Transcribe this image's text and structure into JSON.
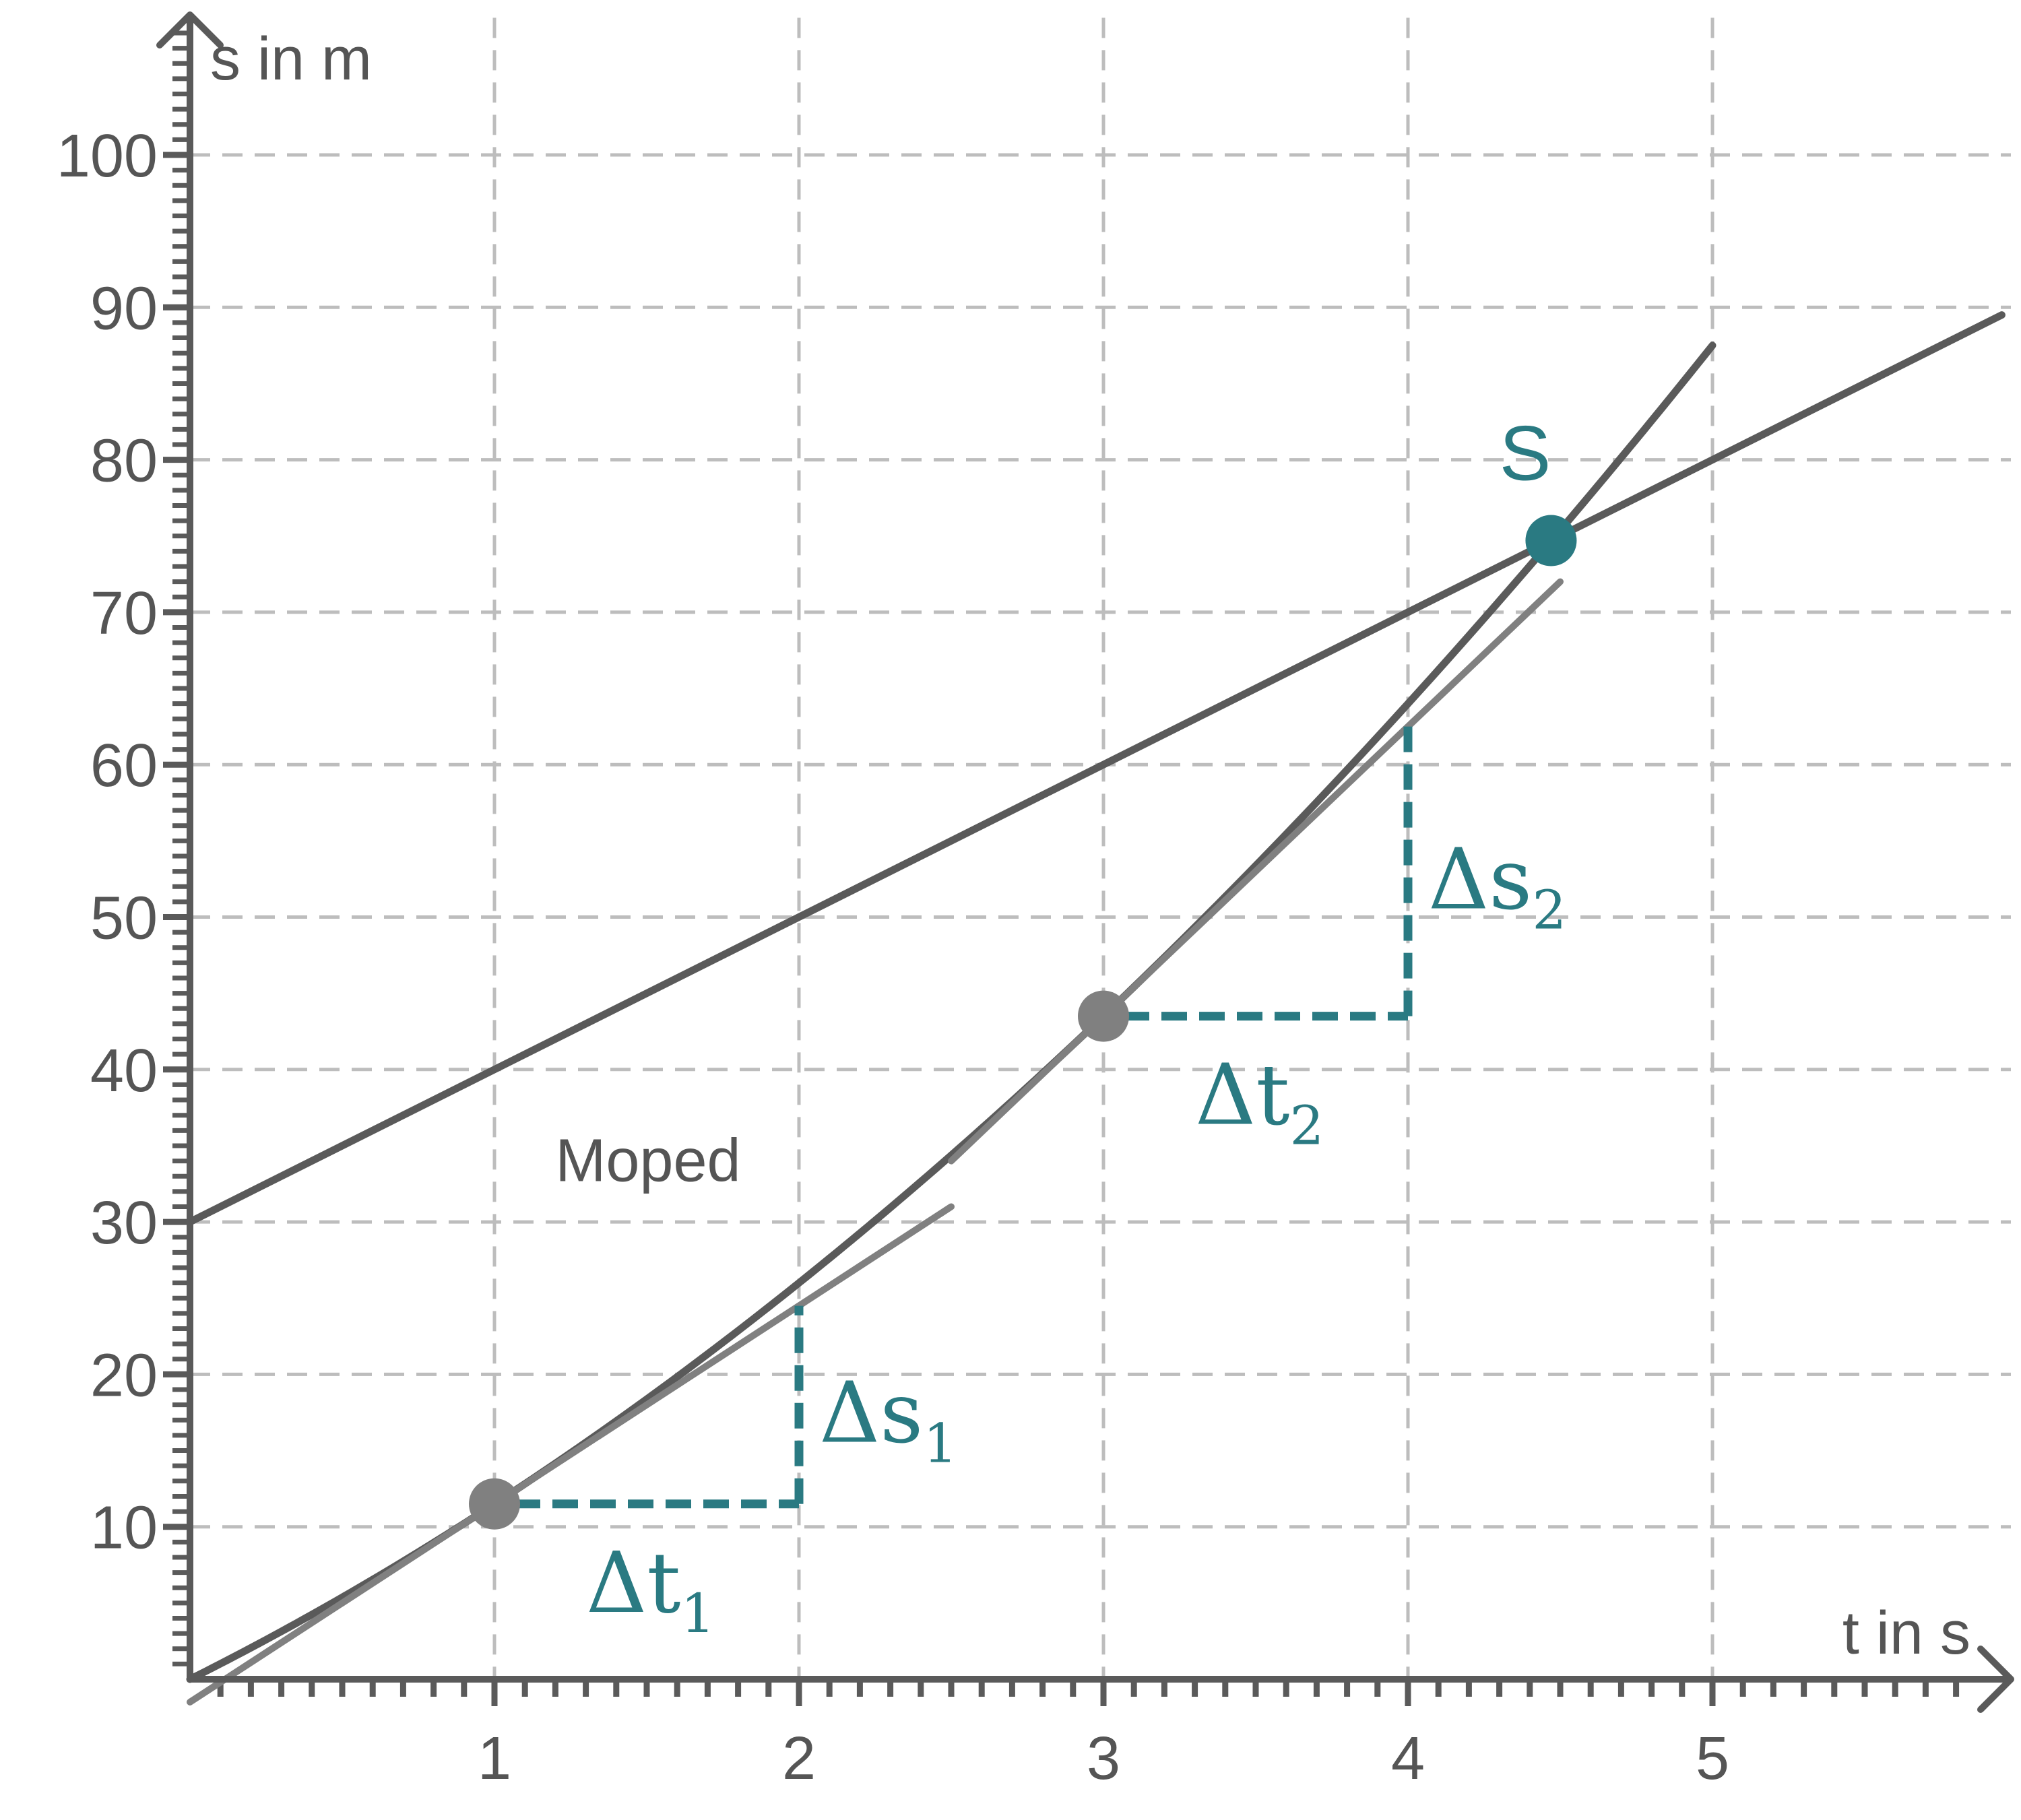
{
  "chart_data": {
    "type": "line",
    "xlabel": "t in s",
    "ylabel": "s in m",
    "xlim": [
      0,
      5.95
    ],
    "ylim": [
      0,
      109
    ],
    "x_ticks": [
      1,
      2,
      3,
      4,
      5
    ],
    "y_ticks": [
      10,
      20,
      30,
      40,
      50,
      60,
      70,
      80,
      90,
      100
    ],
    "grid": true,
    "series": [
      {
        "name": "",
        "kind": "curve",
        "formula": "s = 10*t + 1.5*t^2",
        "x_range": [
          0,
          5
        ],
        "color": "#5a5a5a"
      },
      {
        "name": "Moped",
        "kind": "line",
        "formula": "s = 30 + 10*t",
        "x_range": [
          0,
          5.95
        ],
        "color": "#5a5a5a"
      },
      {
        "name": "",
        "kind": "tangent",
        "slope": 13,
        "through": [
          1,
          11.5
        ],
        "x_range": [
          0,
          2.5
        ],
        "color": "#808080"
      },
      {
        "name": "",
        "kind": "tangent",
        "slope": 19,
        "through": [
          3,
          43.5
        ],
        "x_range": [
          2.5,
          4.5
        ],
        "color": "#808080"
      }
    ],
    "points": [
      {
        "name": "",
        "x": 1,
        "y": 11.5,
        "color": "#808080"
      },
      {
        "name": "",
        "x": 3,
        "y": 43.5,
        "color": "#808080"
      },
      {
        "name": "S",
        "x": 4.47,
        "y": 74.7,
        "color": "#2a7a82"
      }
    ],
    "triangles": [
      {
        "from": [
          1,
          11.5
        ],
        "dt": 1,
        "ds": 13,
        "dt_label": "Δt",
        "dt_sub": "1",
        "ds_label": "Δs",
        "ds_sub": "1"
      },
      {
        "from": [
          3,
          43.5
        ],
        "dt": 1,
        "ds": 19,
        "dt_label": "Δt",
        "dt_sub": "2",
        "ds_label": "Δs",
        "ds_sub": "2"
      }
    ],
    "annotations": [
      {
        "text": "Moped",
        "x": 1.2,
        "y": 34
      },
      {
        "text": "S",
        "x": 4.3,
        "y": 80
      }
    ],
    "accent_color": "#2a7a82"
  }
}
